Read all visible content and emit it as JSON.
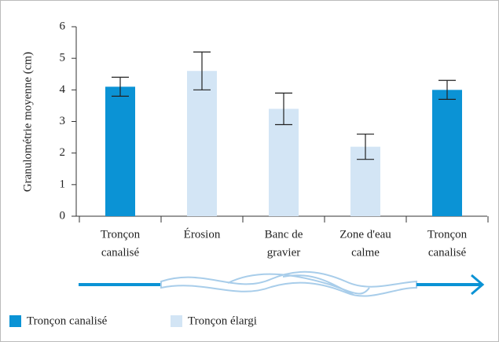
{
  "chart_data": {
    "type": "bar",
    "y_label": "Granulométrie moyenne (cm)",
    "categories": [
      [
        "Tronçon",
        "canalisé"
      ],
      [
        "Érosion"
      ],
      [
        "Banc de",
        "gravier"
      ],
      [
        "Zone d'eau",
        "calme"
      ],
      [
        "Tronçon",
        "canalisé"
      ]
    ],
    "series": [
      {
        "name": "Tronçon canalisé",
        "color": "#0b93d5",
        "values": [
          4.1,
          null,
          null,
          null,
          4.0
        ],
        "errors": [
          0.3,
          null,
          null,
          null,
          0.3
        ]
      },
      {
        "name": "Tronçon élargi",
        "color": "#d3e5f5",
        "values": [
          null,
          4.6,
          3.4,
          2.2,
          null
        ],
        "errors": [
          null,
          0.6,
          0.5,
          0.4,
          null
        ]
      }
    ],
    "ylim": [
      0,
      6
    ],
    "yticks": [
      0,
      1,
      2,
      3,
      4,
      5,
      6
    ]
  }
}
